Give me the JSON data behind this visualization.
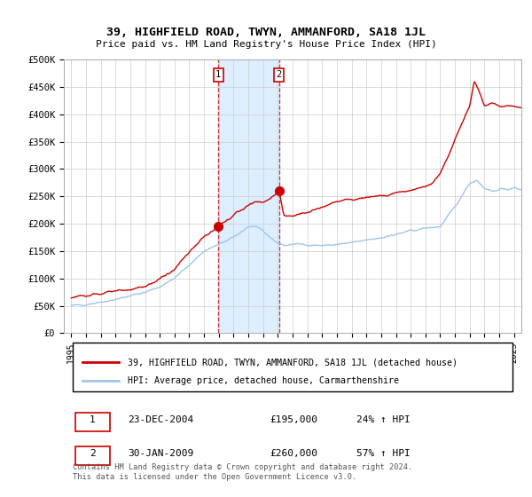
{
  "title": "39, HIGHFIELD ROAD, TWYN, AMMANFORD, SA18 1JL",
  "subtitle": "Price paid vs. HM Land Registry's House Price Index (HPI)",
  "legend_line1": "39, HIGHFIELD ROAD, TWYN, AMMANFORD, SA18 1JL (detached house)",
  "legend_line2": "HPI: Average price, detached house, Carmarthenshire",
  "footnote": "Contains HM Land Registry data © Crown copyright and database right 2024.\nThis data is licensed under the Open Government Licence v3.0.",
  "sale1_label": "1",
  "sale1_date": "23-DEC-2004",
  "sale1_price": "£195,000",
  "sale1_hpi": "24% ↑ HPI",
  "sale1_x": 2004.97,
  "sale1_y": 195000,
  "sale2_label": "2",
  "sale2_date": "30-JAN-2009",
  "sale2_price": "£260,000",
  "sale2_hpi": "57% ↑ HPI",
  "sale2_x": 2009.08,
  "sale2_y": 260000,
  "hpi_color": "#a0c4e8",
  "sale_color": "#cc0000",
  "highlight_color": "#ddeeff",
  "ylim": [
    0,
    500000
  ],
  "yticks": [
    0,
    50000,
    100000,
    150000,
    200000,
    250000,
    300000,
    350000,
    400000,
    450000,
    500000
  ],
  "ytick_labels": [
    "£0",
    "£50K",
    "£100K",
    "£150K",
    "£200K",
    "£250K",
    "£300K",
    "£350K",
    "£400K",
    "£450K",
    "£500K"
  ],
  "xlim_start": 1994.5,
  "xlim_end": 2025.5
}
